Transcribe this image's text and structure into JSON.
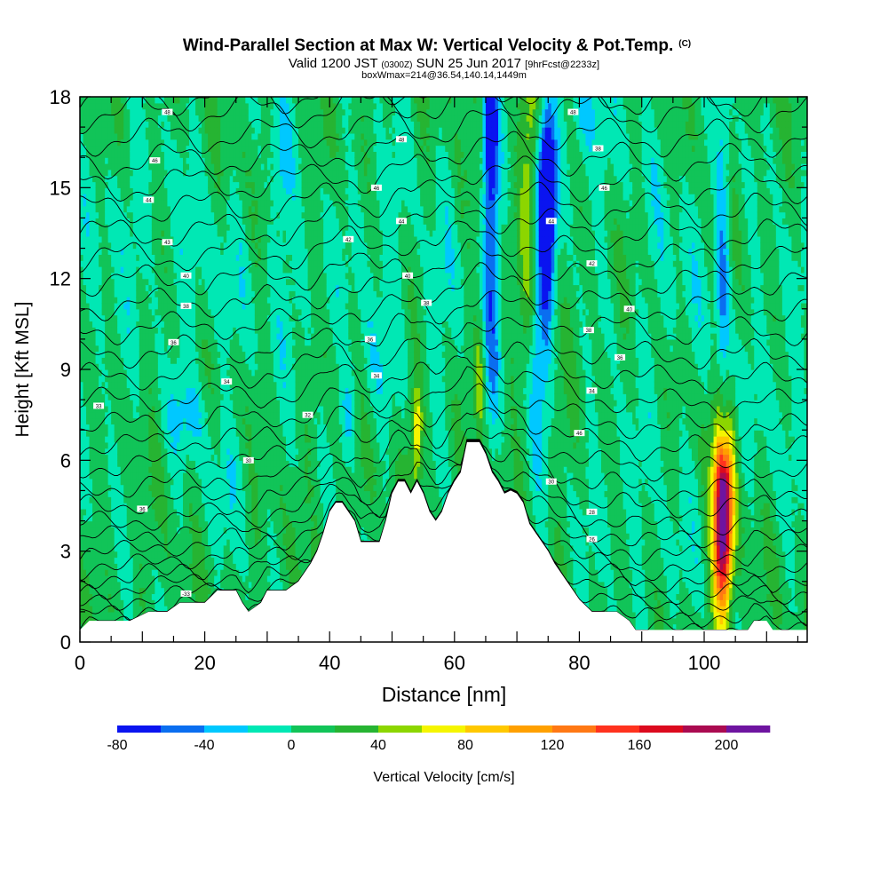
{
  "chart_data": {
    "type": "heatmap",
    "title": "Wind-Parallel Section at Max W: Vertical Velocity & Pot.Temp.",
    "title_mark": "(C)",
    "subtitle_parts": [
      "Valid 1200 JST ",
      "(0300Z)",
      " SUN 25 Jun 2017 ",
      "[9hrFcst@2233z]"
    ],
    "subtitle2": "boxWmax=214@36.54,140.14,1449m",
    "xlabel": "Distance [nm]",
    "ylabel": "Height [Kft MSL]",
    "xlim": [
      0,
      116.5
    ],
    "ylim": [
      0,
      18
    ],
    "xticks": [
      0,
      20,
      40,
      60,
      80,
      100
    ],
    "yticks": [
      0,
      3,
      6,
      9,
      12,
      15,
      18
    ],
    "colorbar": {
      "label": "Vertical Velocity [cm/s]",
      "min": -80,
      "max": 220,
      "step": 20,
      "tick_values": [
        -80,
        -40,
        0,
        40,
        80,
        120,
        160,
        200
      ],
      "colors": [
        "#0a14f0",
        "#0a6ef0",
        "#00c8ff",
        "#00e8b4",
        "#11c458",
        "#26b432",
        "#8cd600",
        "#f5f500",
        "#ffc800",
        "#ffa000",
        "#ff7814",
        "#ff321e",
        "#dc0a1e",
        "#aa0a50",
        "#6e14a0"
      ]
    },
    "background_value": 10,
    "terrain_kft": [
      [
        0,
        0.4
      ],
      [
        1.5,
        0.7
      ],
      [
        4,
        0.7
      ],
      [
        8,
        0.7
      ],
      [
        11,
        1.0
      ],
      [
        14,
        1.0
      ],
      [
        16,
        1.3
      ],
      [
        20,
        1.3
      ],
      [
        22,
        1.7
      ],
      [
        25,
        1.7
      ],
      [
        26,
        1.3
      ],
      [
        27,
        1.0
      ],
      [
        29,
        1.3
      ],
      [
        30,
        1.7
      ],
      [
        33,
        1.7
      ],
      [
        35,
        2.0
      ],
      [
        36,
        2.3
      ],
      [
        37,
        2.6
      ],
      [
        38,
        3.0
      ],
      [
        39,
        3.6
      ],
      [
        40,
        4.3
      ],
      [
        41,
        4.6
      ],
      [
        42,
        4.6
      ],
      [
        44,
        4.0
      ],
      [
        45,
        3.3
      ],
      [
        48,
        3.3
      ],
      [
        49,
        4.0
      ],
      [
        50,
        4.9
      ],
      [
        51,
        5.3
      ],
      [
        52,
        5.3
      ],
      [
        53,
        4.9
      ],
      [
        54,
        5.3
      ],
      [
        55,
        4.9
      ],
      [
        56,
        4.3
      ],
      [
        57,
        4.0
      ],
      [
        58,
        4.3
      ],
      [
        59,
        4.9
      ],
      [
        60,
        5.3
      ],
      [
        61,
        5.6
      ],
      [
        62,
        6.6
      ],
      [
        64,
        6.6
      ],
      [
        65,
        6.2
      ],
      [
        66,
        5.6
      ],
      [
        67,
        5.3
      ],
      [
        68,
        4.9
      ],
      [
        69,
        5.0
      ],
      [
        70,
        4.9
      ],
      [
        71,
        4.6
      ],
      [
        72,
        3.9
      ],
      [
        73,
        3.6
      ],
      [
        74,
        3.3
      ],
      [
        75,
        3.0
      ],
      [
        76,
        2.6
      ],
      [
        77,
        2.3
      ],
      [
        78,
        2.0
      ],
      [
        79,
        1.7
      ],
      [
        80,
        1.4
      ],
      [
        82,
        1.0
      ],
      [
        86,
        1.0
      ],
      [
        88,
        0.7
      ],
      [
        89,
        0.4
      ],
      [
        95,
        0.4
      ],
      [
        100,
        0.4
      ],
      [
        107,
        0.4
      ],
      [
        108,
        0.7
      ],
      [
        110,
        0.7
      ],
      [
        111,
        0.4
      ],
      [
        116.5,
        0.4
      ]
    ],
    "w_features": [
      {
        "x": 66.0,
        "y": 14.0,
        "sx": 0.9,
        "sy": 5.0,
        "value": -60
      },
      {
        "x": 65.5,
        "y": 16.8,
        "sx": 0.8,
        "sy": 1.8,
        "value": -45
      },
      {
        "x": 75.0,
        "y": 15.0,
        "sx": 1.0,
        "sy": 1.8,
        "value": -90
      },
      {
        "x": 74.5,
        "y": 12.5,
        "sx": 0.9,
        "sy": 3.5,
        "value": -55
      },
      {
        "x": 73.0,
        "y": 9.5,
        "sx": 0.7,
        "sy": 2.5,
        "value": -30
      },
      {
        "x": 103.0,
        "y": 11.5,
        "sx": 0.8,
        "sy": 5.5,
        "value": -50
      },
      {
        "x": 103.2,
        "y": 7.0,
        "sx": 0.5,
        "sy": 0.9,
        "value": -40
      },
      {
        "x": 103.0,
        "y": 4.2,
        "sx": 0.9,
        "sy": 2.1,
        "value": 230
      },
      {
        "x": 103.0,
        "y": 4.2,
        "sx": 1.5,
        "sy": 2.6,
        "value": 80
      },
      {
        "x": 72.0,
        "y": 16.0,
        "sx": 1.1,
        "sy": 3.5,
        "value": 55
      },
      {
        "x": 64.0,
        "y": 8.6,
        "sx": 0.5,
        "sy": 1.4,
        "value": 55
      },
      {
        "x": 54.0,
        "y": 6.9,
        "sx": 0.5,
        "sy": 1.0,
        "value": 62
      },
      {
        "x": 53.8,
        "y": 6.6,
        "sx": 1.0,
        "sy": 1.6,
        "value": 40
      },
      {
        "x": 17.0,
        "y": 7.5,
        "sx": 2.5,
        "sy": 1.0,
        "value": -22
      },
      {
        "x": 43.0,
        "y": 7.5,
        "sx": 1.0,
        "sy": 1.2,
        "value": -25
      },
      {
        "x": 32.0,
        "y": 16.0,
        "sx": 1.5,
        "sy": 2.5,
        "value": -22
      },
      {
        "x": 80.5,
        "y": 17.5,
        "sx": 1.2,
        "sy": 0.9,
        "value": -25
      },
      {
        "x": 82.0,
        "y": 16.5,
        "sx": 5.0,
        "sy": 2.0,
        "value": -10
      },
      {
        "x": 8.0,
        "y": 14.5,
        "sx": 5.0,
        "sy": 1.8,
        "value": -10
      },
      {
        "x": 20.0,
        "y": 12.0,
        "sx": 5.0,
        "sy": 2.0,
        "value": -12
      },
      {
        "x": 35.0,
        "y": 11.0,
        "sx": 4.0,
        "sy": 1.6,
        "value": -10
      },
      {
        "x": 48.0,
        "y": 14.0,
        "sx": 4.0,
        "sy": 2.0,
        "value": -10
      },
      {
        "x": 58.0,
        "y": 11.0,
        "sx": 3.0,
        "sy": 2.5,
        "value": -10
      },
      {
        "x": 95.0,
        "y": 12.0,
        "sx": 4.0,
        "sy": 3.0,
        "value": -10
      },
      {
        "x": 112.0,
        "y": 9.0,
        "sx": 4.0,
        "sy": 3.0,
        "value": -10
      },
      {
        "x": 86.0,
        "y": 5.0,
        "sx": 4.0,
        "sy": 2.0,
        "value": -10
      },
      {
        "x": 95.0,
        "y": 2.5,
        "sx": 3.0,
        "sy": 1.5,
        "value": -10
      },
      {
        "x": 48.0,
        "y": 9.5,
        "sx": 3.0,
        "sy": 1.6,
        "value": -10
      },
      {
        "x": 24.0,
        "y": 5.5,
        "sx": 3.0,
        "sy": 1.5,
        "value": -10
      },
      {
        "x": 4.0,
        "y": 9.0,
        "sx": 2.5,
        "sy": 2.5,
        "value": -8
      }
    ],
    "isentropes": {
      "heights_kft": [
        0.2,
        0.6,
        1.0,
        1.4,
        1.8,
        2.2,
        2.7,
        3.2,
        3.7,
        4.3,
        4.9,
        5.6,
        6.3,
        7.0,
        7.8,
        8.6,
        9.4,
        10.2,
        11.0,
        11.8,
        12.6,
        13.4,
        14.2,
        15.0,
        15.8,
        16.6,
        17.4,
        17.95
      ],
      "amplitude_kft": 2.6,
      "decay_kft": 9.0
    },
    "contour_labels": [
      {
        "x": 17.0,
        "y": 1.6,
        "text": "-33"
      },
      {
        "x": 10.0,
        "y": 4.4,
        "text": "36"
      },
      {
        "x": 27.0,
        "y": 6.0,
        "text": "30"
      },
      {
        "x": 3.0,
        "y": 7.8,
        "text": "33"
      },
      {
        "x": 23.5,
        "y": 8.6,
        "text": "34"
      },
      {
        "x": 36.5,
        "y": 7.5,
        "text": "32"
      },
      {
        "x": 47.5,
        "y": 8.8,
        "text": "34"
      },
      {
        "x": 15.0,
        "y": 9.9,
        "text": "36"
      },
      {
        "x": 46.5,
        "y": 10.0,
        "text": "36"
      },
      {
        "x": 17.0,
        "y": 11.1,
        "text": "38"
      },
      {
        "x": 55.5,
        "y": 11.2,
        "text": "38"
      },
      {
        "x": 17.0,
        "y": 12.1,
        "text": "40"
      },
      {
        "x": 52.5,
        "y": 12.1,
        "text": "40"
      },
      {
        "x": 14.0,
        "y": 13.2,
        "text": "43"
      },
      {
        "x": 43.0,
        "y": 13.3,
        "text": "42"
      },
      {
        "x": 11.0,
        "y": 14.6,
        "text": "44"
      },
      {
        "x": 51.5,
        "y": 13.9,
        "text": "44"
      },
      {
        "x": 75.5,
        "y": 13.9,
        "text": "44"
      },
      {
        "x": 47.5,
        "y": 15.0,
        "text": "46"
      },
      {
        "x": 12.0,
        "y": 15.9,
        "text": "46"
      },
      {
        "x": 51.5,
        "y": 16.6,
        "text": "48"
      },
      {
        "x": 14.0,
        "y": 17.5,
        "text": "48"
      },
      {
        "x": 79.0,
        "y": 17.5,
        "text": "48"
      },
      {
        "x": 83.0,
        "y": 16.3,
        "text": "38"
      },
      {
        "x": 84.0,
        "y": 15.0,
        "text": "46"
      },
      {
        "x": 82.0,
        "y": 12.5,
        "text": "42"
      },
      {
        "x": 88.0,
        "y": 11.0,
        "text": "40"
      },
      {
        "x": 81.5,
        "y": 10.3,
        "text": "38"
      },
      {
        "x": 86.5,
        "y": 9.4,
        "text": "36"
      },
      {
        "x": 82.0,
        "y": 8.3,
        "text": "34"
      },
      {
        "x": 80.0,
        "y": 6.9,
        "text": "46"
      },
      {
        "x": 75.5,
        "y": 5.3,
        "text": "30"
      },
      {
        "x": 82.0,
        "y": 4.3,
        "text": "28"
      },
      {
        "x": 82.0,
        "y": 3.4,
        "text": "26"
      }
    ]
  }
}
